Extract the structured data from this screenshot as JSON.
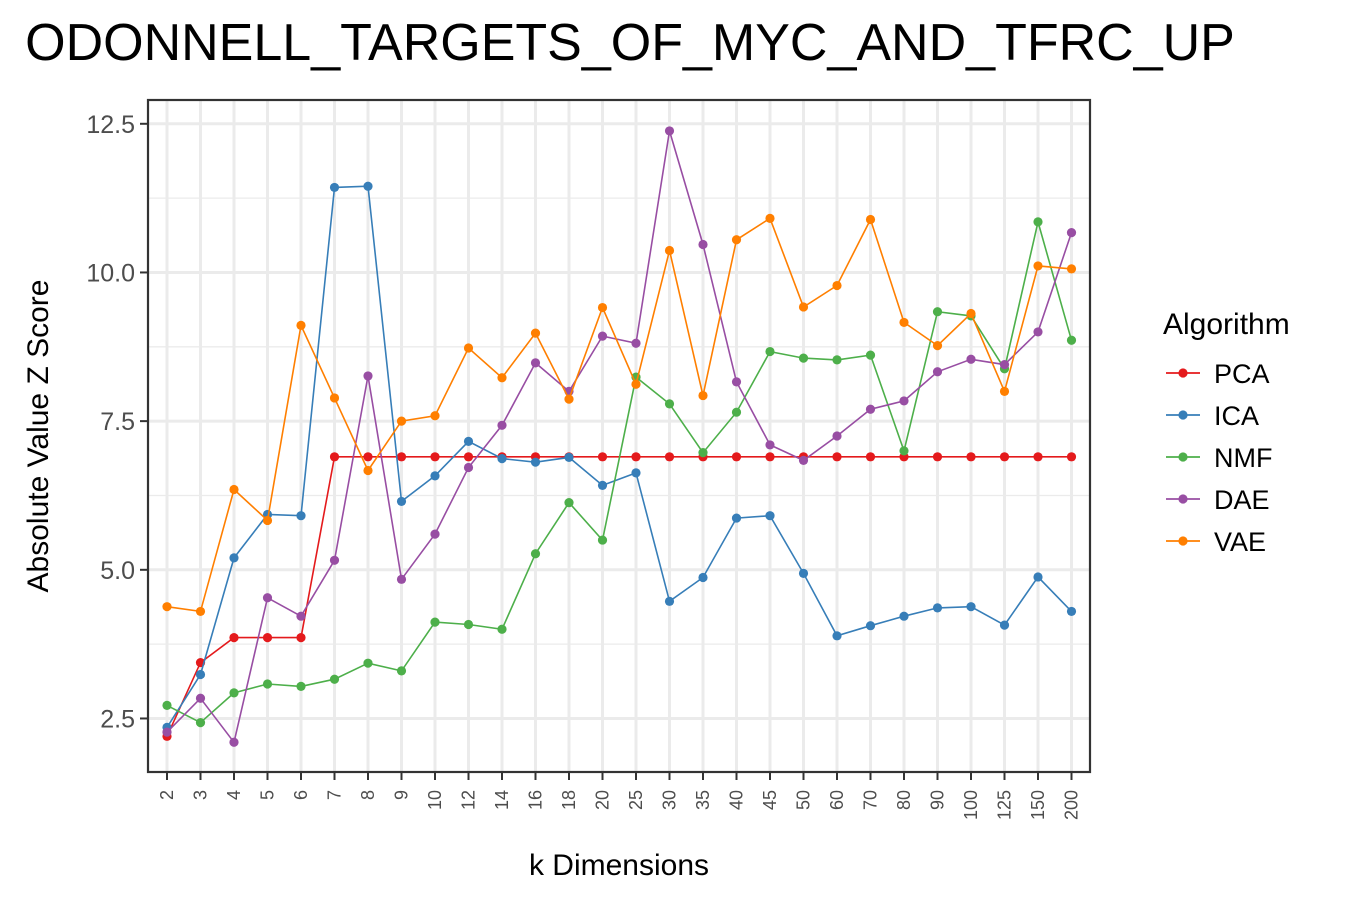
{
  "chart_data": {
    "type": "line",
    "title": "ODONNELL_TARGETS_OF_MYC_AND_TFRC_UP",
    "xlabel": "k Dimensions",
    "ylabel": "Absolute Value Z Score",
    "categories": [
      "2",
      "3",
      "4",
      "5",
      "6",
      "7",
      "8",
      "9",
      "10",
      "12",
      "14",
      "16",
      "18",
      "20",
      "25",
      "30",
      "35",
      "40",
      "45",
      "50",
      "60",
      "70",
      "80",
      "90",
      "100",
      "125",
      "150",
      "200"
    ],
    "ylim": [
      1.6,
      12.9
    ],
    "yticks": [
      2.5,
      5.0,
      7.5,
      10.0,
      12.5
    ],
    "ytick_labels": [
      "2.5",
      "5.0",
      "7.5",
      "10.0",
      "12.5"
    ],
    "grid": true,
    "legend": {
      "title": "Algorithm",
      "position": "right"
    },
    "series": [
      {
        "name": "PCA",
        "color": "#e41a1c",
        "values": [
          2.2,
          3.44,
          3.86,
          3.86,
          3.86,
          6.9,
          6.9,
          6.9,
          6.9,
          6.9,
          6.9,
          6.9,
          6.9,
          6.9,
          6.9,
          6.9,
          6.9,
          6.9,
          6.9,
          6.9,
          6.9,
          6.9,
          6.9,
          6.9,
          6.9,
          6.9,
          6.9,
          6.9
        ]
      },
      {
        "name": "ICA",
        "color": "#377eb8",
        "values": [
          2.35,
          3.24,
          5.2,
          5.93,
          5.91,
          11.43,
          11.45,
          6.15,
          6.58,
          7.16,
          6.87,
          6.81,
          6.89,
          6.42,
          6.63,
          4.47,
          4.87,
          5.87,
          5.91,
          4.94,
          3.89,
          4.06,
          4.22,
          4.36,
          4.38,
          4.07,
          4.88,
          4.3
        ]
      },
      {
        "name": "NMF",
        "color": "#4daf4a",
        "values": [
          2.72,
          2.43,
          2.93,
          3.08,
          3.04,
          3.16,
          3.43,
          3.3,
          4.12,
          4.08,
          4.0,
          5.27,
          6.13,
          5.5,
          8.24,
          7.79,
          6.97,
          7.65,
          8.67,
          8.56,
          8.53,
          8.61,
          7.0,
          9.34,
          9.27,
          8.38,
          10.85,
          8.86
        ]
      },
      {
        "name": "DAE",
        "color": "#984ea3",
        "values": [
          2.27,
          2.84,
          2.1,
          4.53,
          4.22,
          5.16,
          8.26,
          4.84,
          5.6,
          6.72,
          7.43,
          8.48,
          8.0,
          8.93,
          8.81,
          12.38,
          10.47,
          8.16,
          7.1,
          6.84,
          7.25,
          7.7,
          7.84,
          8.33,
          8.54,
          8.45,
          9.0,
          10.67
        ]
      },
      {
        "name": "VAE",
        "color": "#ff7f00",
        "values": [
          4.38,
          4.3,
          6.35,
          5.83,
          9.11,
          7.89,
          6.67,
          7.5,
          7.59,
          8.73,
          8.23,
          8.98,
          7.87,
          9.41,
          8.12,
          10.37,
          7.93,
          10.55,
          10.91,
          9.42,
          9.78,
          10.89,
          9.16,
          8.77,
          9.31,
          8.0,
          10.11,
          10.06
        ]
      }
    ]
  }
}
